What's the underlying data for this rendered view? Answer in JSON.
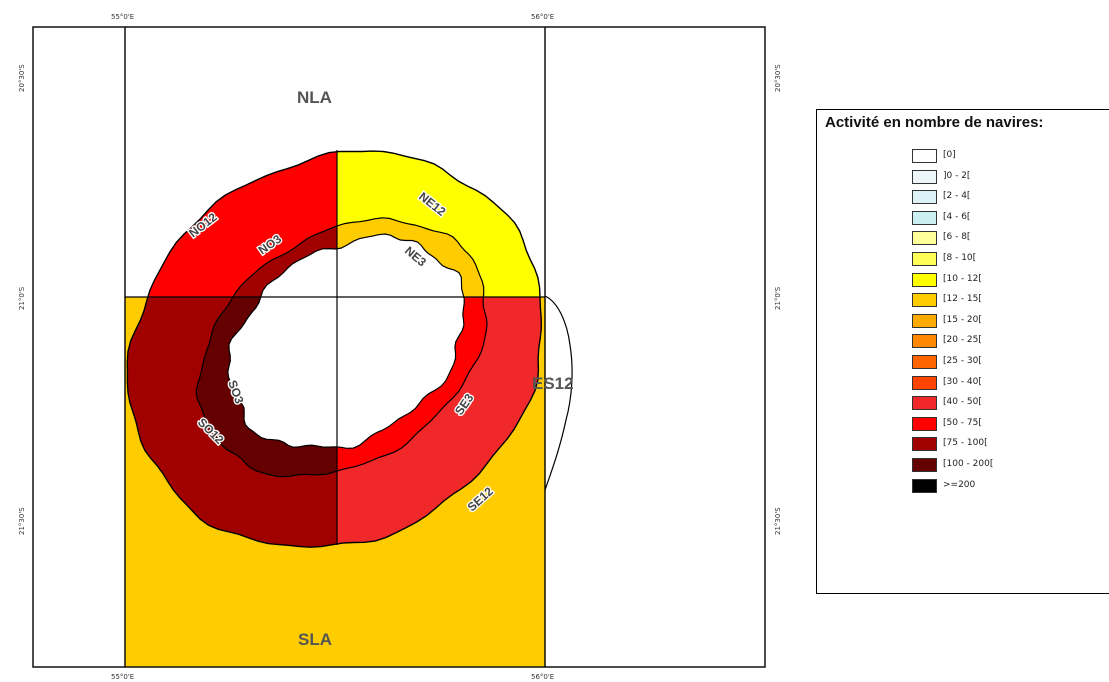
{
  "map": {
    "zones": [
      {
        "id": "NLA",
        "label": "NLA",
        "color": "#ffffff"
      },
      {
        "id": "SLA",
        "label": "SLA",
        "color": "#ffcc00"
      },
      {
        "id": "ES12",
        "label": "ES12",
        "color": "#ffffff"
      },
      {
        "id": "NO12",
        "label": "NO12",
        "color": "#ff0000"
      },
      {
        "id": "NE12",
        "label": "NE12",
        "color": "#ffff00"
      },
      {
        "id": "SE12",
        "label": "SE12",
        "color": "#f0282a"
      },
      {
        "id": "SO12",
        "label": "SO12",
        "color": "#a00000"
      },
      {
        "id": "NO3",
        "label": "NO3",
        "color": "#a00000"
      },
      {
        "id": "NE3",
        "label": "NE3",
        "color": "#ffcc00"
      },
      {
        "id": "SE3",
        "label": "SE3",
        "color": "#ff0000"
      },
      {
        "id": "SO3",
        "label": "SO3",
        "color": "#640000"
      }
    ],
    "coords": {
      "lon_left": "55°0'E",
      "lon_right": "56°0'E",
      "lat_top": "20°30'S",
      "lat_mid": "21°0'S",
      "lat_bottom": "21°30'S"
    }
  },
  "legend": {
    "title": "Activité en nombre de navires:",
    "items": [
      {
        "label": "[0]",
        "color": "#ffffff"
      },
      {
        "label": "]0 - 2[",
        "color": "#eef7f7"
      },
      {
        "label": "[2 - 4[",
        "color": "#dcf2f7"
      },
      {
        "label": "[4 - 6[",
        "color": "#ccf0f2"
      },
      {
        "label": "[6 - 8[",
        "color": "#ffff99"
      },
      {
        "label": "[8 - 10[",
        "color": "#ffff55"
      },
      {
        "label": "[10 - 12[",
        "color": "#ffff00"
      },
      {
        "label": "[12 - 15[",
        "color": "#ffcc00"
      },
      {
        "label": "[15 - 20[",
        "color": "#ffaa00"
      },
      {
        "label": "[20 - 25[",
        "color": "#ff8800"
      },
      {
        "label": "[25 - 30[",
        "color": "#ff6600"
      },
      {
        "label": "[30 - 40[",
        "color": "#ff4400"
      },
      {
        "label": "[40 - 50[",
        "color": "#f0282a"
      },
      {
        "label": "[50 - 75[",
        "color": "#ff0000"
      },
      {
        "label": "[75 - 100[",
        "color": "#a00000"
      },
      {
        "label": "[100 - 200[",
        "color": "#640000"
      },
      {
        "label": ">=200",
        "color": "#000000"
      }
    ]
  }
}
